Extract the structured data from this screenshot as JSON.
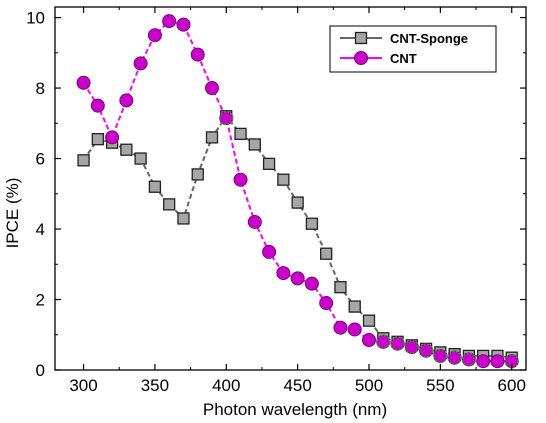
{
  "chart_data": {
    "type": "scatter",
    "title": "",
    "xlabel": "Photon wavelength (nm)",
    "ylabel": "IPCE (%)",
    "xlim": [
      280,
      610
    ],
    "ylim": [
      0,
      10.3
    ],
    "xticks": [
      300,
      350,
      400,
      450,
      500,
      550,
      600
    ],
    "yticks": [
      0,
      2,
      4,
      6,
      8,
      10
    ],
    "grid": false,
    "legend": {
      "placement": "top-right"
    },
    "series": [
      {
        "name": "CNT-Sponge",
        "marker": "square",
        "color": "#a6a6a6",
        "line_color": "#666666",
        "x": [
          300,
          310,
          320,
          330,
          340,
          350,
          360,
          370,
          380,
          390,
          400,
          410,
          420,
          430,
          440,
          450,
          460,
          470,
          480,
          490,
          500,
          510,
          520,
          530,
          540,
          550,
          560,
          570,
          580,
          590,
          600
        ],
        "y": [
          5.95,
          6.55,
          6.45,
          6.25,
          6.0,
          5.2,
          4.7,
          4.3,
          5.55,
          6.6,
          7.2,
          6.7,
          6.4,
          5.85,
          5.4,
          4.75,
          4.15,
          3.3,
          2.35,
          1.8,
          1.4,
          0.9,
          0.8,
          0.7,
          0.6,
          0.5,
          0.45,
          0.4,
          0.4,
          0.4,
          0.35
        ]
      },
      {
        "name": "CNT",
        "marker": "circle",
        "color": "#cc00cc",
        "line_color": "#ff00ff",
        "x": [
          300,
          310,
          320,
          330,
          340,
          350,
          360,
          370,
          380,
          390,
          400,
          410,
          420,
          430,
          440,
          450,
          460,
          470,
          480,
          490,
          500,
          510,
          520,
          530,
          540,
          550,
          560,
          570,
          580,
          590,
          600
        ],
        "y": [
          8.15,
          7.5,
          6.6,
          7.65,
          8.7,
          9.5,
          9.9,
          9.8,
          8.95,
          8.0,
          7.15,
          5.4,
          4.2,
          3.35,
          2.75,
          2.6,
          2.45,
          1.9,
          1.2,
          1.15,
          0.85,
          0.8,
          0.75,
          0.65,
          0.55,
          0.4,
          0.35,
          0.3,
          0.25,
          0.25,
          0.25
        ]
      }
    ]
  }
}
